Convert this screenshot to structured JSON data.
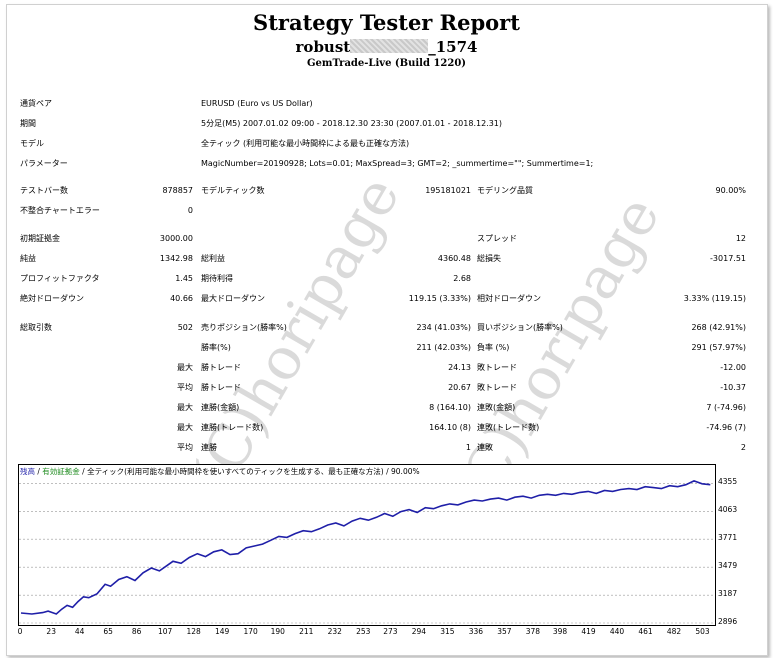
{
  "header": {
    "title": "Strategy Tester Report",
    "name_prefix": "robust",
    "name_suffix": "_1574",
    "build": "GemTrade-Live (Build 1220)"
  },
  "info": {
    "symbol_label": "通貨ペア",
    "symbol_value": "EURUSD (Euro vs US Dollar)",
    "period_label": "期間",
    "period_value": "5分足(M5) 2007.01.02 09:00 - 2018.12.30 23:30 (2007.01.01 - 2018.12.31)",
    "model_label": "モデル",
    "model_value": "全ティック (利用可能な最小時間枠による最も正確な方法)",
    "params_label": "パラメーター",
    "params_value": "MagicNumber=20190928; Lots=0.01; MaxSpread=3; GMT=2; _summertime=\"\"; Summertime=1;"
  },
  "stats": {
    "bars_label": "テストバー数",
    "bars_value": "878857",
    "ticks_label": "モデルティック数",
    "ticks_value": "195181021",
    "quality_label": "モデリング品質",
    "quality_value": "90.00%",
    "mismatch_label": "不整合チャートエラー",
    "mismatch_value": "0",
    "deposit_label": "初期証拠金",
    "deposit_value": "3000.00",
    "spread_label": "スプレッド",
    "spread_value": "12",
    "net_label": "純益",
    "net_value": "1342.98",
    "gross_profit_label": "総利益",
    "gross_profit_value": "4360.48",
    "gross_loss_label": "総損失",
    "gross_loss_value": "-3017.51",
    "pf_label": "プロフィットファクタ",
    "pf_value": "1.45",
    "expected_label": "期待利得",
    "expected_value": "2.68",
    "abs_dd_label": "絶対ドローダウン",
    "abs_dd_value": "40.66",
    "max_dd_label": "最大ドローダウン",
    "max_dd_value": "119.15 (3.33%)",
    "rel_dd_label": "相対ドローダウン",
    "rel_dd_value": "3.33% (119.15)",
    "trades_label": "総取引数",
    "trades_value": "502",
    "short_label": "売りポジション(勝率%)",
    "short_value": "234 (41.03%)",
    "long_label": "買いポジション(勝率%)",
    "long_value": "268 (42.91%)",
    "win_label": "勝率(%)",
    "win_value": "211 (42.03%)",
    "loss_label": "負率 (%)",
    "loss_value": "291 (57.97%)",
    "max_label": "最大",
    "avg_label": "平均",
    "largest_win_label": "勝トレード",
    "largest_win_value": "24.13",
    "largest_loss_label": "敗トレード",
    "largest_loss_value": "-12.00",
    "avg_win_label": "勝トレード",
    "avg_win_value": "20.67",
    "avg_loss_label": "敗トレード",
    "avg_loss_value": "-10.37",
    "cons_wins_label": "連勝(金額)",
    "cons_wins_value": "8 (164.10)",
    "cons_losses_label": "連敗(金額)",
    "cons_losses_value": "7 (-74.96)",
    "cons_profit_label": "連勝(トレード数)",
    "cons_profit_value": "164.10 (8)",
    "cons_loss_label": "連敗(トレード数)",
    "cons_loss_value": "-74.96 (7)",
    "avg_cons_wins_label": "連勝",
    "avg_cons_wins_value": "1",
    "avg_cons_losses_label": "連敗",
    "avg_cons_losses_value": "2"
  },
  "watermark": "(C)horipage",
  "chart_data": {
    "type": "line",
    "legend": {
      "balance": "残高",
      "sep1": " / ",
      "margin": "有効証拠金",
      "sep2": " / ",
      "model": "全ティック(利用可能な最小時間枠を使いすべてのティックを生成する、最も正確な方法)",
      "sep3": " / ",
      "quality": "90.00%"
    },
    "colors": {
      "line": "#1f1fa8",
      "balance_text": "#1f1fa8",
      "margin_text": "#1c8a1c"
    },
    "x_ticks": [
      "0",
      "23",
      "44",
      "65",
      "86",
      "107",
      "128",
      "149",
      "170",
      "190",
      "211",
      "232",
      "253",
      "273",
      "294",
      "315",
      "336",
      "357",
      "378",
      "398",
      "419",
      "440",
      "461",
      "482",
      "503"
    ],
    "y_ticks": [
      "4355",
      "4063",
      "3771",
      "3479",
      "3187",
      "2896"
    ],
    "xlim": [
      0,
      510
    ],
    "ylim": [
      2896,
      4400
    ],
    "x": [
      0,
      8,
      16,
      20,
      26,
      30,
      34,
      38,
      42,
      46,
      50,
      56,
      62,
      66,
      72,
      78,
      84,
      90,
      96,
      102,
      108,
      112,
      118,
      124,
      130,
      136,
      142,
      148,
      154,
      160,
      166,
      172,
      178,
      184,
      190,
      196,
      202,
      208,
      214,
      220,
      226,
      232,
      238,
      244,
      250,
      256,
      262,
      268,
      274,
      280,
      286,
      292,
      298,
      304,
      310,
      316,
      322,
      328,
      334,
      340,
      346,
      352,
      358,
      364,
      370,
      376,
      382,
      388,
      394,
      400,
      406,
      412,
      418,
      424,
      430,
      436,
      442,
      448,
      454,
      460,
      466,
      472,
      478,
      484,
      490,
      496,
      502,
      508
    ],
    "y": [
      3000,
      2990,
      3005,
      3020,
      2990,
      3040,
      3080,
      3060,
      3120,
      3170,
      3160,
      3200,
      3300,
      3280,
      3350,
      3380,
      3340,
      3420,
      3470,
      3440,
      3500,
      3540,
      3520,
      3580,
      3620,
      3590,
      3640,
      3660,
      3610,
      3620,
      3680,
      3700,
      3720,
      3760,
      3800,
      3790,
      3830,
      3860,
      3850,
      3880,
      3920,
      3940,
      3910,
      3960,
      3990,
      3970,
      4000,
      4040,
      4010,
      4060,
      4080,
      4050,
      4100,
      4090,
      4120,
      4140,
      4130,
      4160,
      4180,
      4170,
      4190,
      4200,
      4180,
      4210,
      4220,
      4200,
      4230,
      4240,
      4230,
      4250,
      4240,
      4260,
      4270,
      4250,
      4280,
      4270,
      4290,
      4300,
      4290,
      4320,
      4310,
      4300,
      4330,
      4320,
      4340,
      4380,
      4350,
      4340
    ]
  }
}
